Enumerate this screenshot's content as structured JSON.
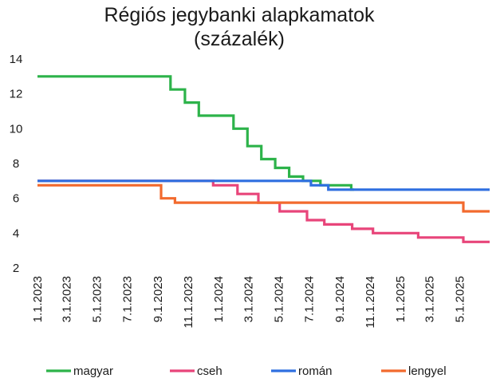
{
  "chart_data": {
    "type": "line",
    "title": [
      "Régiós jegybanki alapkamatok",
      "(százalék)"
    ],
    "xlabel": "",
    "ylabel": "",
    "ylim": [
      2,
      14
    ],
    "y_ticks": [
      2,
      4,
      6,
      8,
      10,
      12,
      14
    ],
    "x_range": [
      "2023-01-01",
      "2025-06-30"
    ],
    "x_ticks": [
      {
        "date": "2023-01-01",
        "label": "1.1.2023"
      },
      {
        "date": "2023-03-01",
        "label": "3.1.2023"
      },
      {
        "date": "2023-05-01",
        "label": "5.1.2023"
      },
      {
        "date": "2023-07-01",
        "label": "7.1.2023"
      },
      {
        "date": "2023-09-01",
        "label": "9.1.2023"
      },
      {
        "date": "2023-11-01",
        "label": "11.1.2023"
      },
      {
        "date": "2024-01-01",
        "label": "1.1.2024"
      },
      {
        "date": "2024-03-01",
        "label": "3.1.2024"
      },
      {
        "date": "2024-05-01",
        "label": "5.1.2024"
      },
      {
        "date": "2024-07-01",
        "label": "7.1.2024"
      },
      {
        "date": "2024-09-01",
        "label": "9.1.2024"
      },
      {
        "date": "2024-11-01",
        "label": "11.1.2024"
      },
      {
        "date": "2025-01-01",
        "label": "1.1.2025"
      },
      {
        "date": "2025-03-01",
        "label": "3.1.2025"
      },
      {
        "date": "2025-05-01",
        "label": "5.1.2025"
      }
    ],
    "grid": false,
    "legend_position": "bottom",
    "step": true,
    "series": [
      {
        "name": "magyar",
        "color": "#2db34a",
        "points": [
          [
            "2023-01-01",
            13.0
          ],
          [
            "2023-09-26",
            12.25
          ],
          [
            "2023-10-25",
            11.5
          ],
          [
            "2023-11-22",
            10.75
          ],
          [
            "2023-12-20",
            10.75
          ],
          [
            "2024-01-31",
            10.0
          ],
          [
            "2024-02-28",
            9.0
          ],
          [
            "2024-03-27",
            8.25
          ],
          [
            "2024-04-24",
            7.75
          ],
          [
            "2024-05-22",
            7.25
          ],
          [
            "2024-06-19",
            7.0
          ],
          [
            "2024-07-24",
            6.75
          ],
          [
            "2024-09-24",
            6.5
          ],
          [
            "2024-09-30",
            6.5
          ]
        ]
      },
      {
        "name": "cseh",
        "color": "#e8457a",
        "points": [
          [
            "2023-01-01",
            7.0
          ],
          [
            "2023-12-21",
            6.75
          ],
          [
            "2024-02-08",
            6.25
          ],
          [
            "2024-03-21",
            5.75
          ],
          [
            "2024-05-03",
            5.25
          ],
          [
            "2024-06-27",
            4.75
          ],
          [
            "2024-08-01",
            4.5
          ],
          [
            "2024-09-26",
            4.25
          ],
          [
            "2024-11-07",
            4.0
          ],
          [
            "2024-12-19",
            4.0
          ],
          [
            "2025-02-06",
            3.75
          ],
          [
            "2025-05-08",
            3.5
          ],
          [
            "2025-06-30",
            3.5
          ]
        ]
      },
      {
        "name": "román",
        "color": "#2f6fe0",
        "points": [
          [
            "2023-01-01",
            7.0
          ],
          [
            "2024-07-05",
            6.75
          ],
          [
            "2024-08-09",
            6.5
          ],
          [
            "2025-06-30",
            6.5
          ]
        ]
      },
      {
        "name": "lengyel",
        "color": "#f26a2e",
        "points": [
          [
            "2023-01-01",
            6.75
          ],
          [
            "2023-09-07",
            6.0
          ],
          [
            "2023-10-05",
            5.75
          ],
          [
            "2025-05-08",
            5.25
          ],
          [
            "2025-06-30",
            5.25
          ]
        ]
      }
    ]
  }
}
